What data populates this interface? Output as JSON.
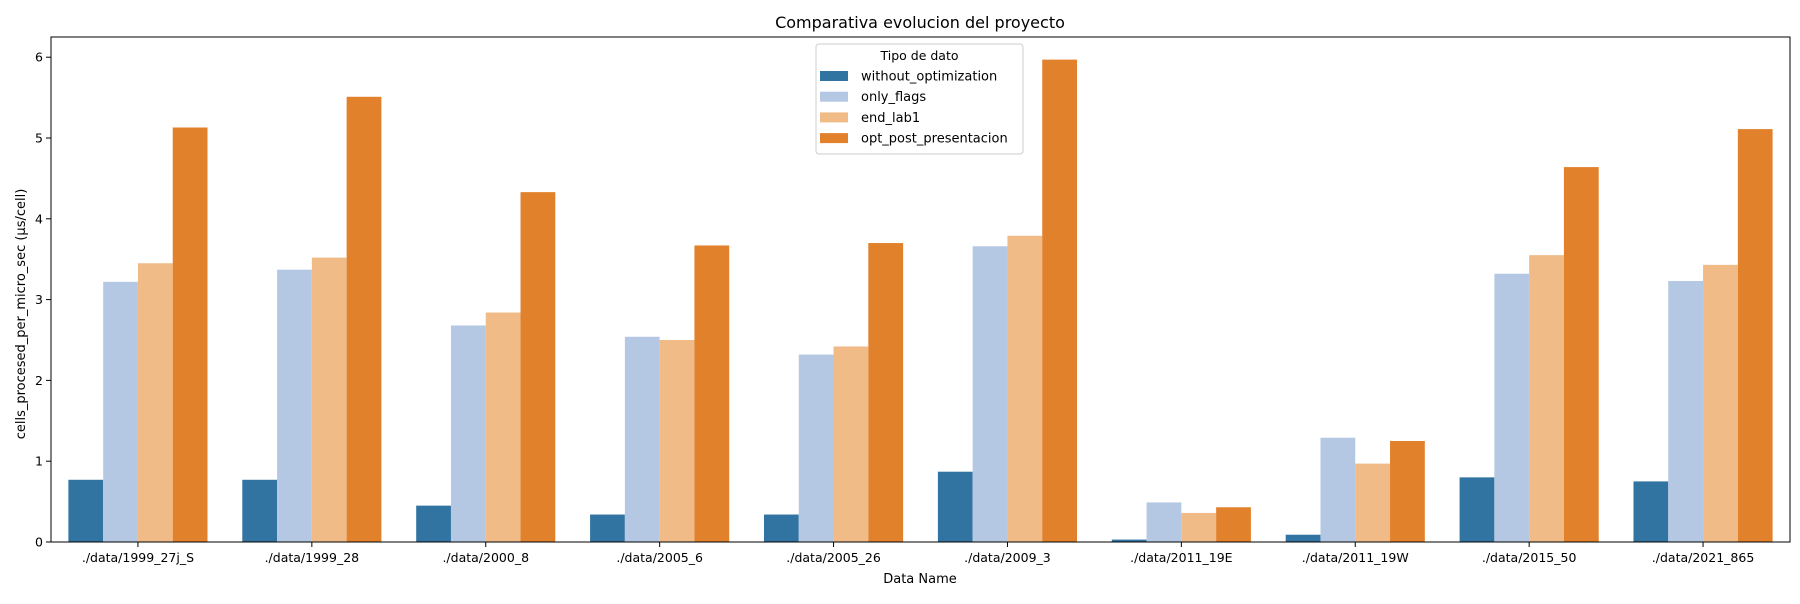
{
  "chart_data": {
    "type": "bar",
    "title": "Comparativa evolucion del proyecto",
    "xlabel": "Data Name",
    "ylabel": "cells_procesed_per_micro_sec (µs/cell)",
    "ylim": [
      0,
      6.25
    ],
    "yticks": [
      "0",
      "1",
      "2",
      "3",
      "4",
      "5",
      "6"
    ],
    "categories": [
      "./data/1999_27j_S",
      "./data/1999_28",
      "./data/2000_8",
      "./data/2005_6",
      "./data/2005_26",
      "./data/2009_3",
      "./data/2011_19E",
      "./data/2011_19W",
      "./data/2015_50",
      "./data/2021_865"
    ],
    "legend": {
      "title": "Tipo de dato",
      "placement": "top-center"
    },
    "grid": false,
    "series": [
      {
        "name": "without_optimization",
        "color": "#3274a1",
        "values": [
          0.77,
          0.77,
          0.45,
          0.34,
          0.34,
          0.87,
          0.03,
          0.09,
          0.8,
          0.75
        ]
      },
      {
        "name": "only_flags",
        "color": "#b4c8e4",
        "values": [
          3.22,
          3.37,
          2.68,
          2.54,
          2.32,
          3.66,
          0.49,
          1.29,
          3.32,
          3.23
        ]
      },
      {
        "name": "end_lab1",
        "color": "#f0bb87",
        "values": [
          3.45,
          3.52,
          2.84,
          2.5,
          2.42,
          3.79,
          0.36,
          0.97,
          3.55,
          3.43
        ]
      },
      {
        "name": "opt_post_presentacion",
        "color": "#e1812c",
        "values": [
          5.13,
          5.51,
          4.33,
          3.67,
          3.7,
          5.97,
          0.43,
          1.25,
          4.64,
          5.11
        ]
      }
    ]
  }
}
